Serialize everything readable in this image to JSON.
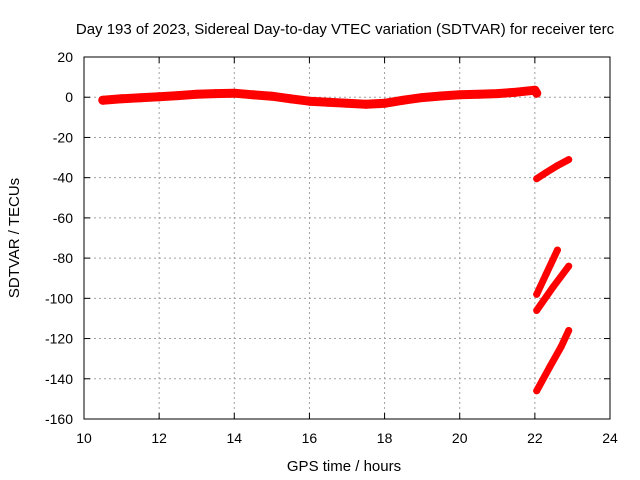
{
  "chart_data": {
    "type": "scatter",
    "title": "Day 193 of 2023, Sidereal Day-to-day VTEC variation (SDTVAR) for receiver terc",
    "xlabel": "GPS time / hours",
    "ylabel": "SDTVAR / TECUs",
    "xlim": [
      10,
      24
    ],
    "ylim": [
      -160,
      20
    ],
    "xticks": [
      "10",
      "12",
      "14",
      "16",
      "18",
      "20",
      "22",
      "24"
    ],
    "yticks": [
      "-160",
      "-140",
      "-120",
      "-100",
      "-80",
      "-60",
      "-40",
      "-20",
      "0",
      "20"
    ],
    "grid": true,
    "point_color": "#ff0000",
    "series": [
      {
        "points": [
          [
            10.5,
            -1.5
          ],
          [
            11.0,
            -0.8
          ],
          [
            11.5,
            -0.3
          ],
          [
            12.0,
            0.2
          ],
          [
            12.5,
            0.8
          ],
          [
            13.0,
            1.5
          ],
          [
            13.5,
            1.8
          ],
          [
            14.0,
            2.0
          ],
          [
            14.5,
            1.2
          ],
          [
            15.0,
            0.5
          ],
          [
            15.5,
            -0.8
          ],
          [
            16.0,
            -2.0
          ],
          [
            16.5,
            -2.5
          ],
          [
            17.0,
            -3.0
          ],
          [
            17.5,
            -3.5
          ],
          [
            18.0,
            -3.0
          ],
          [
            18.5,
            -1.5
          ],
          [
            19.0,
            -0.2
          ],
          [
            19.5,
            0.6
          ],
          [
            20.0,
            1.2
          ],
          [
            20.5,
            1.5
          ],
          [
            21.0,
            1.8
          ],
          [
            21.5,
            2.5
          ],
          [
            22.0,
            3.5
          ],
          [
            22.05,
            2.0
          ]
        ],
        "thickness": 4
      },
      {
        "points": [
          [
            22.05,
            -40.5
          ],
          [
            22.3,
            -37.5
          ],
          [
            22.6,
            -34.0
          ],
          [
            22.9,
            -31.0
          ]
        ],
        "thickness": 3
      },
      {
        "points": [
          [
            22.05,
            -98.0
          ],
          [
            22.3,
            -88.0
          ],
          [
            22.6,
            -76.0
          ]
        ],
        "thickness": 3
      },
      {
        "points": [
          [
            22.05,
            -106.0
          ],
          [
            22.5,
            -94.0
          ],
          [
            22.9,
            -84.0
          ]
        ],
        "thickness": 3
      },
      {
        "points": [
          [
            22.05,
            -146.0
          ],
          [
            22.4,
            -134.0
          ],
          [
            22.7,
            -124.0
          ],
          [
            22.9,
            -116.0
          ]
        ],
        "thickness": 3
      }
    ]
  }
}
